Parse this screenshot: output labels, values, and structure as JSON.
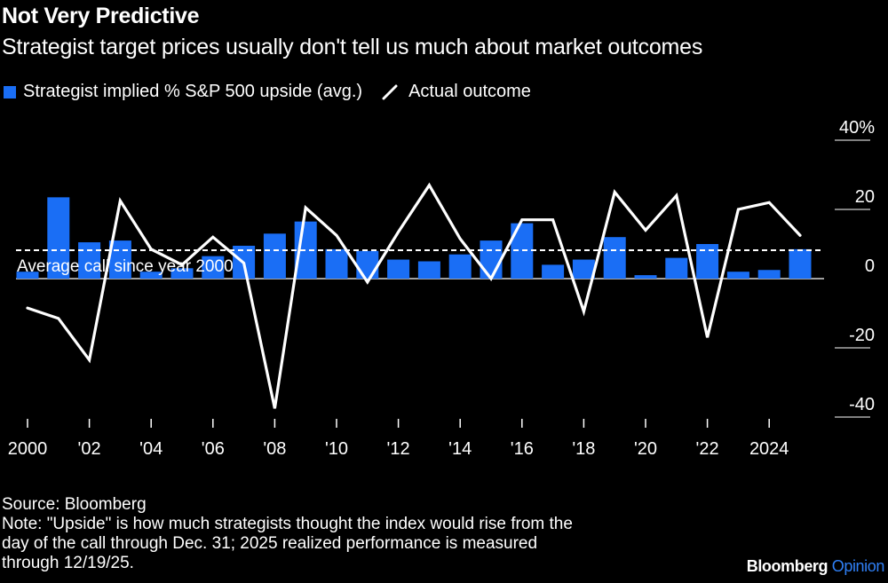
{
  "header": {
    "title": "Not Very Predictive",
    "subtitle": "Strategist target prices usually don't tell us much about market outcomes"
  },
  "legend": {
    "bars_label": "Strategist implied % S&P 500 upside (avg.)",
    "line_label": "Actual outcome"
  },
  "colors": {
    "bar": "#1a6ef5",
    "line": "#ffffff",
    "background": "#000000",
    "accent": "#2f7ff5"
  },
  "chart_data": {
    "type": "bar+line",
    "title": "Not Very Predictive",
    "subtitle": "Strategist target prices usually don't tell us much about market outcomes",
    "xlabel": "",
    "ylabel": "",
    "ylim": [
      -40,
      40
    ],
    "y_ticks": [
      40,
      20,
      0,
      -20,
      -40
    ],
    "y_tick_labels": [
      "40%",
      "20",
      "0",
      "-20",
      "-40"
    ],
    "x_tick_labels": [
      "2000",
      "'02",
      "'04",
      "'06",
      "'08",
      "'10",
      "'12",
      "'14",
      "'16",
      "'18",
      "'20",
      "'22",
      "2024"
    ],
    "years": [
      2000,
      2001,
      2002,
      2003,
      2004,
      2005,
      2006,
      2007,
      2008,
      2009,
      2010,
      2011,
      2012,
      2013,
      2014,
      2015,
      2016,
      2017,
      2018,
      2019,
      2020,
      2021,
      2022,
      2023,
      2024,
      2025
    ],
    "series": [
      {
        "name": "Strategist implied % S&P 500 upside (avg.)",
        "kind": "bar",
        "values": [
          2,
          23.5,
          10.5,
          11,
          2,
          3,
          6.5,
          9.5,
          13,
          16.5,
          8.5,
          8,
          5.5,
          5,
          7,
          11,
          16,
          4,
          5.5,
          12,
          1,
          6,
          10,
          2,
          2.5,
          8.5
        ]
      },
      {
        "name": "Actual outcome",
        "kind": "line",
        "values": [
          -8.5,
          -11.5,
          -23.5,
          22.5,
          8.5,
          4,
          12,
          4.5,
          -37.5,
          20.5,
          12.5,
          -1,
          13.5,
          27,
          11.5,
          0,
          17,
          17,
          -9.5,
          25,
          14,
          24,
          -17,
          20,
          22,
          12.5
        ]
      }
    ],
    "reference_line": {
      "label": "Average call since year 2000",
      "value": 8.2
    }
  },
  "footer": {
    "source": "Source: Bloomberg",
    "note_lines": [
      "Note: \"Upside\" is how much strategists thought the index would rise from the",
      "day of the call through Dec. 31; 2025 realized performance is measured",
      "through 12/19/25."
    ],
    "brand_main": "Bloomberg",
    "brand_accent": "Opinion"
  }
}
